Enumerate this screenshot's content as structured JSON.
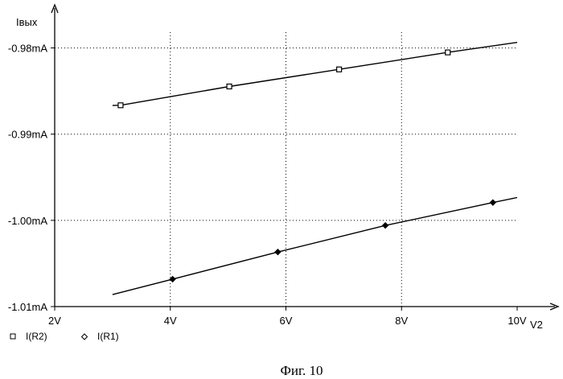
{
  "chart_data": {
    "type": "line",
    "ylabel": "Iвых",
    "xlabel": "V2",
    "xlim": [
      2,
      10
    ],
    "ylim": [
      -1.01,
      -0.975
    ],
    "x_ticks": [
      {
        "value": 2,
        "label": "2V"
      },
      {
        "value": 4,
        "label": "4V"
      },
      {
        "value": 6,
        "label": "6V"
      },
      {
        "value": 8,
        "label": "8V"
      },
      {
        "value": 10,
        "label": "10V"
      }
    ],
    "y_ticks": [
      {
        "value": -0.98,
        "label": "-0.98mA"
      },
      {
        "value": -0.99,
        "label": "-0.99mA"
      },
      {
        "value": -1.0,
        "label": "-1.00mA"
      },
      {
        "value": -1.01,
        "label": "-1.01mA"
      }
    ],
    "grid": "dotted",
    "series": [
      {
        "name": "I(R2)",
        "marker": "square",
        "x": [
          3.0,
          3.14,
          5.02,
          6.92,
          8.8,
          10.0
        ],
        "y": [
          -0.98668,
          -0.98665,
          -0.98447,
          -0.98249,
          -0.98052,
          -0.97936
        ],
        "markers_x": [
          3.14,
          5.02,
          6.92,
          8.8
        ]
      },
      {
        "name": "I(R1)",
        "marker": "diamond",
        "x": [
          3.0,
          4.04,
          5.86,
          7.72,
          9.58,
          10.0
        ],
        "y": [
          -1.00861,
          -1.00682,
          -1.00367,
          -1.00059,
          -0.99793,
          -0.99735
        ],
        "markers_x": [
          4.04,
          5.86,
          7.72,
          9.58
        ]
      }
    ],
    "legend": {
      "placement": "bottom-left",
      "items": [
        "I(R2)",
        "I(R1)"
      ]
    }
  },
  "caption": "Фиг. 10",
  "colors": {
    "line": "#000000",
    "grid": "#000000",
    "background": "#ffffff"
  }
}
